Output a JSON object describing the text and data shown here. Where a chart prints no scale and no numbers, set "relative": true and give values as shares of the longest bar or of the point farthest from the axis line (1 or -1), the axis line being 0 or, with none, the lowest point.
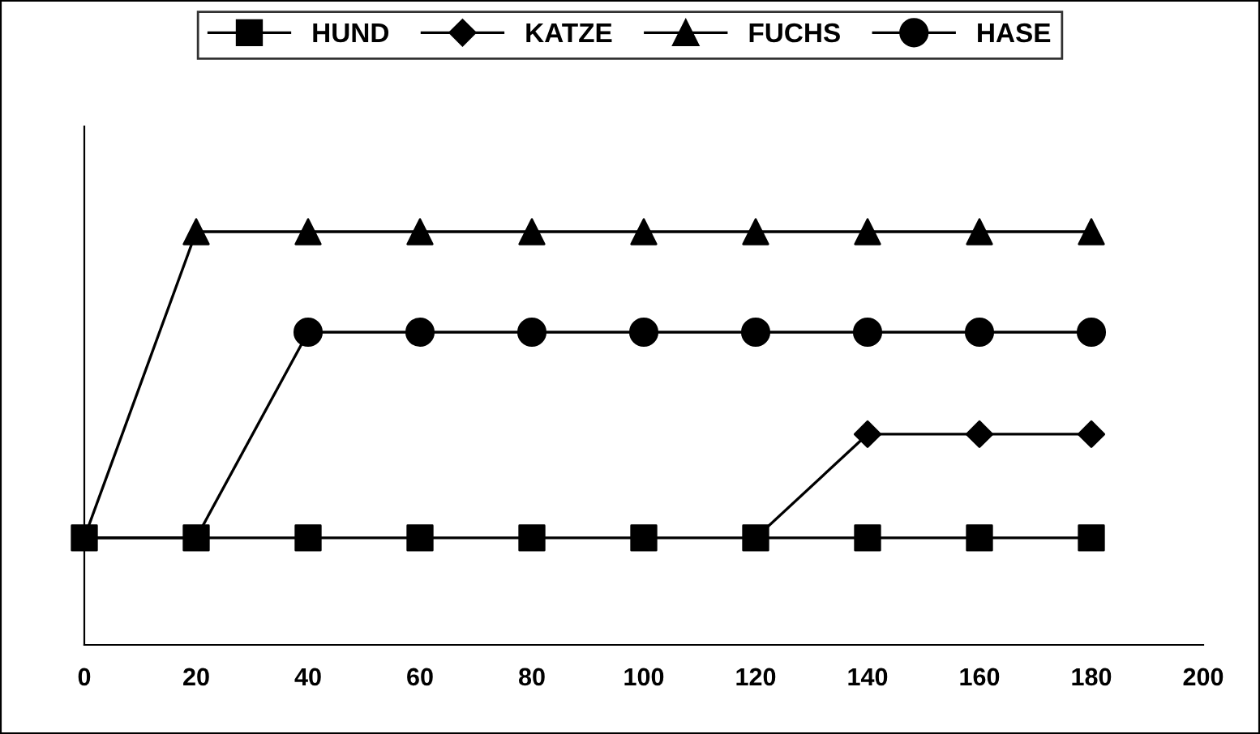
{
  "chart_data": {
    "type": "line",
    "relative": true,
    "x": [
      0,
      20,
      40,
      60,
      80,
      100,
      120,
      140,
      160,
      180
    ],
    "xlim": [
      0,
      200
    ],
    "xticks": [
      0,
      20,
      40,
      60,
      80,
      100,
      120,
      140,
      160,
      180,
      200
    ],
    "legend": "top",
    "grid": false,
    "line_style": "solid",
    "series": [
      {
        "name": "HUND",
        "color": "#000000",
        "marker": "square",
        "values": [
          0.259,
          0.259,
          0.259,
          0.259,
          0.259,
          0.259,
          0.259,
          0.259,
          0.259,
          0.259
        ]
      },
      {
        "name": "KATZE",
        "color": "#000000",
        "marker": "diamond",
        "values": [
          null,
          null,
          null,
          null,
          null,
          null,
          0.259,
          0.51,
          0.51,
          0.51
        ]
      },
      {
        "name": "FUCHS",
        "color": "#000000",
        "marker": "triangle",
        "values": [
          0.259,
          1,
          1,
          1,
          1,
          1,
          1,
          1,
          1,
          1
        ]
      },
      {
        "name": "HASE",
        "color": "#000000",
        "marker": "circle",
        "values": [
          0.259,
          0.259,
          0.757,
          0.757,
          0.757,
          0.757,
          0.757,
          0.757,
          0.757,
          0.757
        ]
      }
    ]
  }
}
